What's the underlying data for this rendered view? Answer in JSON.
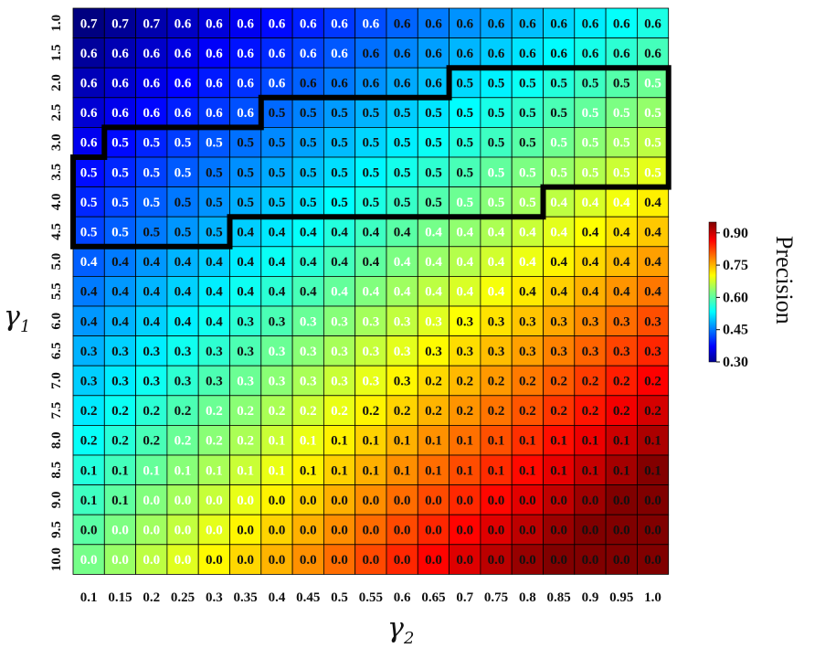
{
  "chart_data": {
    "type": "heatmap",
    "x_categories": [
      "0.1",
      "0.15",
      "0.2",
      "0.25",
      "0.3",
      "0.35",
      "0.4",
      "0.45",
      "0.5",
      "0.55",
      "0.6",
      "0.65",
      "0.7",
      "0.75",
      "0.8",
      "0.85",
      "0.9",
      "0.95",
      "1.0"
    ],
    "y_categories": [
      "1.0",
      "1.5",
      "2.0",
      "2.5",
      "3.0",
      "3.5",
      "4.0",
      "4.5",
      "5.0",
      "5.5",
      "6.0",
      "6.5",
      "7.0",
      "7.5",
      "8.0",
      "8.5",
      "9.0",
      "9.5",
      "10.0"
    ],
    "xlabel": "γ",
    "xlabel_sub": "2",
    "ylabel": "γ",
    "ylabel_sub": "1",
    "colorbar_label": "Precision",
    "colorbar_ticks": [
      "0.90",
      "0.75",
      "0.60",
      "0.45",
      "0.30"
    ],
    "colorbar_tick_values": [
      0.9,
      0.75,
      0.6,
      0.45,
      0.3
    ],
    "color_range": [
      0.3,
      0.95
    ],
    "colormap": "jet",
    "outline_color": "#000000",
    "annotations": [
      [
        "0.7",
        "0.7",
        "0.7",
        "0.6",
        "0.6",
        "0.6",
        "0.6",
        "0.6",
        "0.6",
        "0.6",
        "0.6",
        "0.6",
        "0.6",
        "0.6",
        "0.6",
        "0.6",
        "0.6",
        "0.6",
        "0.6"
      ],
      [
        "0.6",
        "0.6",
        "0.6",
        "0.6",
        "0.6",
        "0.6",
        "0.6",
        "0.6",
        "0.6",
        "0.6",
        "0.6",
        "0.6",
        "0.6",
        "0.6",
        "0.6",
        "0.6",
        "0.6",
        "0.6",
        "0.6"
      ],
      [
        "0.6",
        "0.6",
        "0.6",
        "0.6",
        "0.6",
        "0.6",
        "0.6",
        "0.6",
        "0.6",
        "0.6",
        "0.6",
        "0.6",
        "0.5",
        "0.5",
        "0.5",
        "0.5",
        "0.5",
        "0.5",
        "0.5"
      ],
      [
        "0.6",
        "0.6",
        "0.6",
        "0.6",
        "0.6",
        "0.6",
        "0.5",
        "0.5",
        "0.5",
        "0.5",
        "0.5",
        "0.5",
        "0.5",
        "0.5",
        "0.5",
        "0.5",
        "0.5",
        "0.5",
        "0.5"
      ],
      [
        "0.6",
        "0.5",
        "0.5",
        "0.5",
        "0.5",
        "0.5",
        "0.5",
        "0.5",
        "0.5",
        "0.5",
        "0.5",
        "0.5",
        "0.5",
        "0.5",
        "0.5",
        "0.5",
        "0.5",
        "0.5",
        "0.5"
      ],
      [
        "0.5",
        "0.5",
        "0.5",
        "0.5",
        "0.5",
        "0.5",
        "0.5",
        "0.5",
        "0.5",
        "0.5",
        "0.5",
        "0.5",
        "0.5",
        "0.5",
        "0.5",
        "0.5",
        "0.5",
        "0.5",
        "0.5"
      ],
      [
        "0.5",
        "0.5",
        "0.5",
        "0.5",
        "0.5",
        "0.5",
        "0.5",
        "0.5",
        "0.5",
        "0.5",
        "0.5",
        "0.5",
        "0.5",
        "0.5",
        "0.5",
        "0.4",
        "0.4",
        "0.4",
        "0.4"
      ],
      [
        "0.5",
        "0.5",
        "0.5",
        "0.5",
        "0.5",
        "0.4",
        "0.4",
        "0.4",
        "0.4",
        "0.4",
        "0.4",
        "0.4",
        "0.4",
        "0.4",
        "0.4",
        "0.4",
        "0.4",
        "0.4",
        "0.4"
      ],
      [
        "0.4",
        "0.4",
        "0.4",
        "0.4",
        "0.4",
        "0.4",
        "0.4",
        "0.4",
        "0.4",
        "0.4",
        "0.4",
        "0.4",
        "0.4",
        "0.4",
        "0.4",
        "0.4",
        "0.4",
        "0.4",
        "0.4"
      ],
      [
        "0.4",
        "0.4",
        "0.4",
        "0.4",
        "0.4",
        "0.4",
        "0.4",
        "0.4",
        "0.4",
        "0.4",
        "0.4",
        "0.4",
        "0.4",
        "0.4",
        "0.4",
        "0.4",
        "0.4",
        "0.4",
        "0.4"
      ],
      [
        "0.4",
        "0.4",
        "0.4",
        "0.4",
        "0.4",
        "0.3",
        "0.3",
        "0.3",
        "0.3",
        "0.3",
        "0.3",
        "0.3",
        "0.3",
        "0.3",
        "0.3",
        "0.3",
        "0.3",
        "0.3",
        "0.3"
      ],
      [
        "0.3",
        "0.3",
        "0.3",
        "0.3",
        "0.3",
        "0.3",
        "0.3",
        "0.3",
        "0.3",
        "0.3",
        "0.3",
        "0.3",
        "0.3",
        "0.3",
        "0.3",
        "0.3",
        "0.3",
        "0.3",
        "0.3"
      ],
      [
        "0.3",
        "0.3",
        "0.3",
        "0.3",
        "0.3",
        "0.3",
        "0.3",
        "0.3",
        "0.3",
        "0.3",
        "0.3",
        "0.2",
        "0.2",
        "0.2",
        "0.2",
        "0.2",
        "0.2",
        "0.2",
        "0.2"
      ],
      [
        "0.2",
        "0.2",
        "0.2",
        "0.2",
        "0.2",
        "0.2",
        "0.2",
        "0.2",
        "0.2",
        "0.2",
        "0.2",
        "0.2",
        "0.2",
        "0.2",
        "0.2",
        "0.2",
        "0.2",
        "0.2",
        "0.2"
      ],
      [
        "0.2",
        "0.2",
        "0.2",
        "0.2",
        "0.2",
        "0.2",
        "0.1",
        "0.1",
        "0.1",
        "0.1",
        "0.1",
        "0.1",
        "0.1",
        "0.1",
        "0.1",
        "0.1",
        "0.1",
        "0.1",
        "0.1"
      ],
      [
        "0.1",
        "0.1",
        "0.1",
        "0.1",
        "0.1",
        "0.1",
        "0.1",
        "0.1",
        "0.1",
        "0.1",
        "0.1",
        "0.1",
        "0.1",
        "0.1",
        "0.1",
        "0.1",
        "0.1",
        "0.1",
        "0.1"
      ],
      [
        "0.1",
        "0.1",
        "0.0",
        "0.0",
        "0.0",
        "0.0",
        "0.0",
        "0.0",
        "0.0",
        "0.0",
        "0.0",
        "0.0",
        "0.0",
        "0.0",
        "0.0",
        "0.0",
        "0.0",
        "0.0",
        "0.0"
      ],
      [
        "0.0",
        "0.0",
        "0.0",
        "0.0",
        "0.0",
        "0.0",
        "0.0",
        "0.0",
        "0.0",
        "0.0",
        "0.0",
        "0.0",
        "0.0",
        "0.0",
        "0.0",
        "0.0",
        "0.0",
        "0.0",
        "0.0"
      ],
      [
        "0.0",
        "0.0",
        "0.0",
        "0.0",
        "0.0",
        "0.0",
        "0.0",
        "0.0",
        "0.0",
        "0.0",
        "0.0",
        "0.0",
        "0.0",
        "0.0",
        "0.0",
        "0.0",
        "0.0",
        "0.0",
        "0.0"
      ]
    ],
    "highlighted_region": {
      "description": "cells enclosed by the thick black outline (value 0.5)",
      "rows": [
        {
          "row": 2,
          "from_col": 12,
          "to_col": 18
        },
        {
          "row": 3,
          "from_col": 6,
          "to_col": 18
        },
        {
          "row": 4,
          "from_col": 1,
          "to_col": 18
        },
        {
          "row": 5,
          "from_col": 0,
          "to_col": 18
        },
        {
          "row": 6,
          "from_col": 0,
          "to_col": 14
        },
        {
          "row": 7,
          "from_col": 0,
          "to_col": 4
        }
      ]
    }
  }
}
